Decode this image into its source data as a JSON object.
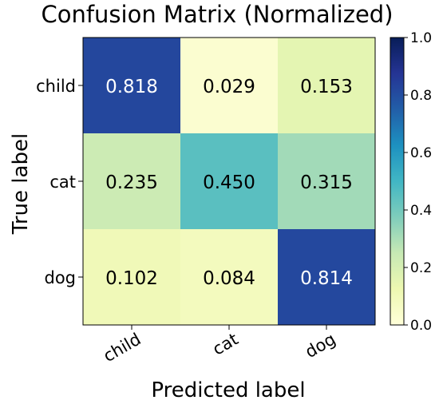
{
  "chart_data": {
    "type": "heatmap",
    "title": "Confusion Matrix (Normalized)",
    "xlabel": "Predicted label",
    "ylabel": "True label",
    "x_categories": [
      "child",
      "cat",
      "dog"
    ],
    "y_categories": [
      "child",
      "cat",
      "dog"
    ],
    "values": [
      [
        0.818,
        0.029,
        0.153
      ],
      [
        0.235,
        0.45,
        0.315
      ],
      [
        0.102,
        0.084,
        0.814
      ]
    ],
    "cell_labels": [
      [
        "0.818",
        "0.029",
        "0.153"
      ],
      [
        "0.235",
        "0.450",
        "0.315"
      ],
      [
        "0.102",
        "0.084",
        "0.814"
      ]
    ],
    "colormap": "YlGnBu",
    "colorbar": {
      "range": [
        0.0,
        1.0
      ],
      "ticks": [
        0.0,
        0.2,
        0.4,
        0.6,
        0.8,
        1.0
      ],
      "tick_labels": [
        "0.0",
        "0.2",
        "0.4",
        "0.6",
        "0.8",
        "1.0"
      ]
    },
    "grid": false
  }
}
